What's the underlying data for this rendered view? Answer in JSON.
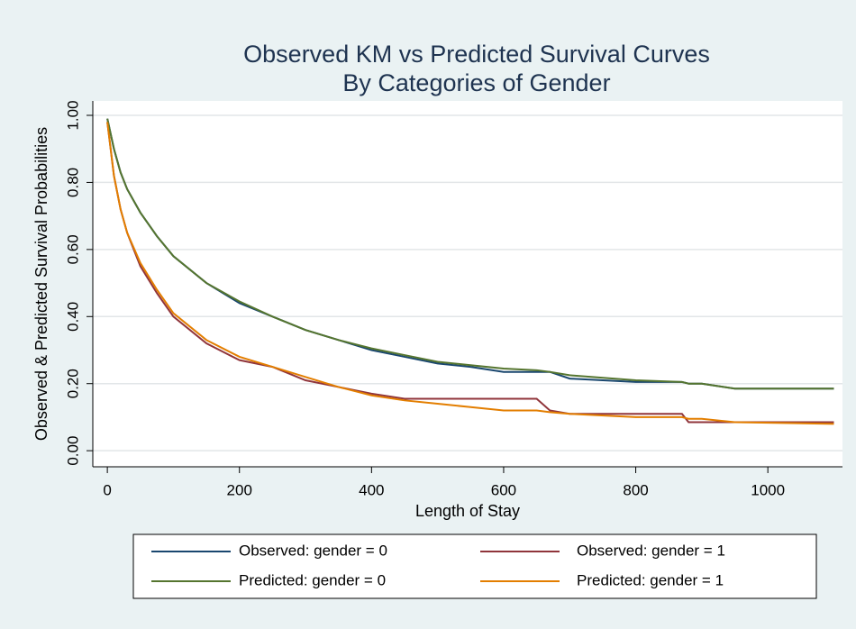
{
  "chart_data": {
    "type": "line",
    "title": [
      "Observed KM vs Predicted Survival Curves",
      "By Categories of Gender"
    ],
    "x_label": "Length of Stay",
    "y_label": "Observed & Predicted Survival Probabilities",
    "x": [
      0,
      10,
      20,
      30,
      50,
      75,
      100,
      150,
      200,
      250,
      300,
      350,
      400,
      450,
      500,
      550,
      600,
      650,
      670,
      700,
      800,
      870,
      880,
      900,
      950,
      1100
    ],
    "series": [
      {
        "name": "Observed: gender = 0",
        "color": "#1a476f",
        "values": [
          0.99,
          0.9,
          0.83,
          0.78,
          0.71,
          0.64,
          0.58,
          0.5,
          0.44,
          0.4,
          0.36,
          0.33,
          0.3,
          0.28,
          0.26,
          0.25,
          0.235,
          0.235,
          0.235,
          0.215,
          0.205,
          0.205,
          0.2,
          0.2,
          0.185,
          0.185
        ]
      },
      {
        "name": "Observed: gender = 1",
        "color": "#90353b",
        "values": [
          0.98,
          0.82,
          0.72,
          0.65,
          0.55,
          0.47,
          0.4,
          0.32,
          0.27,
          0.25,
          0.21,
          0.19,
          0.17,
          0.155,
          0.155,
          0.155,
          0.155,
          0.155,
          0.12,
          0.11,
          0.11,
          0.11,
          0.085,
          0.085,
          0.085,
          0.085
        ]
      },
      {
        "name": "Predicted: gender = 0",
        "color": "#55752f",
        "values": [
          0.99,
          0.9,
          0.83,
          0.78,
          0.71,
          0.64,
          0.58,
          0.5,
          0.445,
          0.4,
          0.36,
          0.33,
          0.305,
          0.285,
          0.265,
          0.255,
          0.245,
          0.24,
          0.235,
          0.225,
          0.21,
          0.205,
          0.2,
          0.2,
          0.185,
          0.185
        ]
      },
      {
        "name": "Predicted: gender = 1",
        "color": "#e37e00",
        "values": [
          0.98,
          0.82,
          0.72,
          0.65,
          0.56,
          0.48,
          0.41,
          0.33,
          0.28,
          0.25,
          0.22,
          0.19,
          0.165,
          0.15,
          0.14,
          0.13,
          0.12,
          0.12,
          0.115,
          0.11,
          0.1,
          0.1,
          0.095,
          0.095,
          0.085,
          0.08
        ]
      }
    ],
    "xlim": [
      -22,
      1113
    ],
    "xticks": [
      0,
      200,
      400,
      600,
      800,
      1000
    ],
    "ylim": [
      -0.048,
      1.043
    ],
    "yticks": [
      {
        "value": 0,
        "label": "0.00"
      },
      {
        "value": 0.2,
        "label": "0.20"
      },
      {
        "value": 0.4,
        "label": "0.40"
      },
      {
        "value": 0.6,
        "label": "0.60"
      },
      {
        "value": 0.8,
        "label": "0.80"
      },
      {
        "value": 1,
        "label": "1.00"
      }
    ],
    "grid": true
  }
}
